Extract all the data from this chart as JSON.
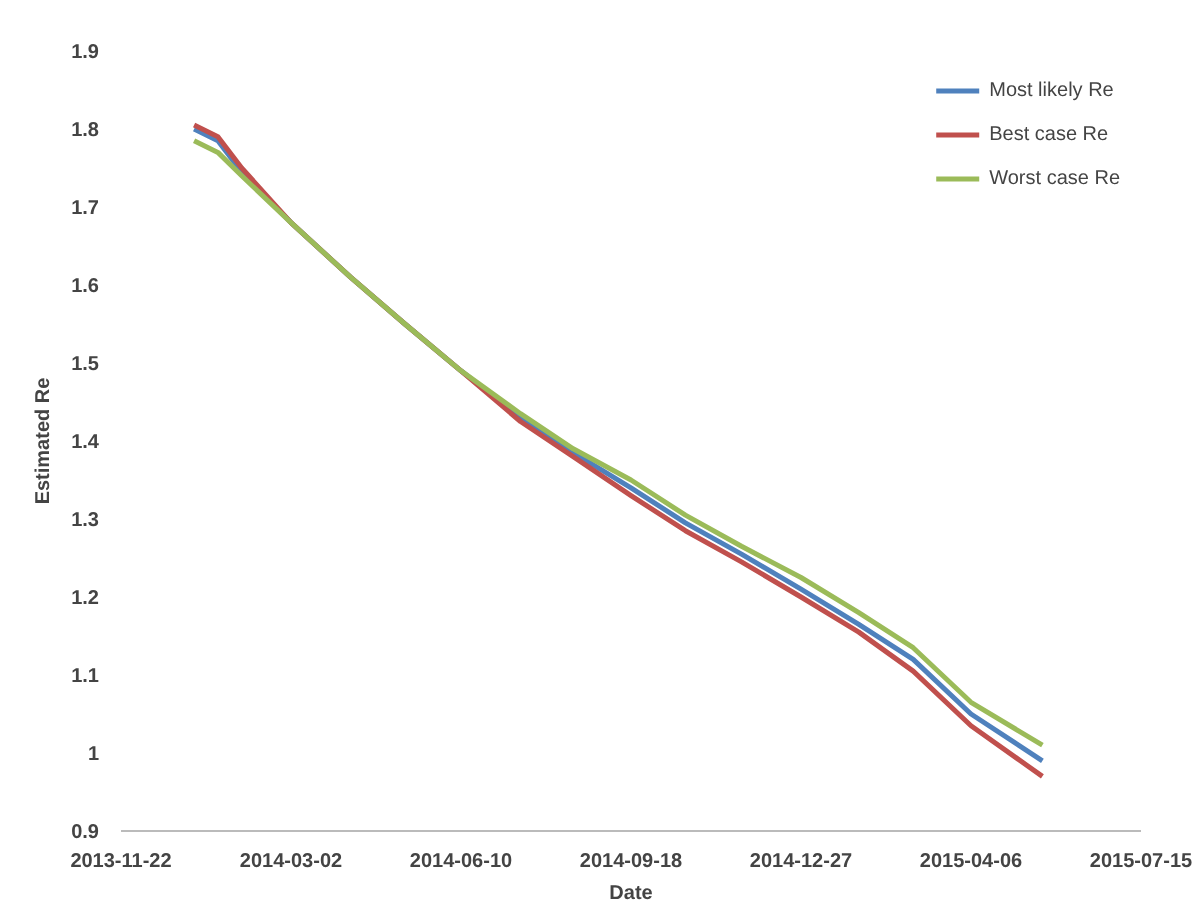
{
  "chart_data": {
    "type": "line",
    "xlabel": "Date",
    "ylabel": "Estimated Re",
    "xlim": [
      "2013-11-22",
      "2015-07-15"
    ],
    "xticks": [
      {
        "value": "2013-11-22",
        "label": "2013-11-22"
      },
      {
        "value": "2014-03-02",
        "label": "2014-03-02"
      },
      {
        "value": "2014-06-10",
        "label": "2014-06-10"
      },
      {
        "value": "2014-09-18",
        "label": "2014-09-18"
      },
      {
        "value": "2014-12-27",
        "label": "2014-12-27"
      },
      {
        "value": "2015-04-06",
        "label": "2015-04-06"
      },
      {
        "value": "2015-07-15",
        "label": "2015-07-15"
      }
    ],
    "ylim": [
      0.9,
      1.9
    ],
    "yticks": [
      0.9,
      {
        "value": 1.0,
        "label": "1"
      },
      1.1,
      1.2,
      1.3,
      1.4,
      1.5,
      1.6,
      1.7,
      1.8,
      1.9
    ],
    "x": [
      "2014-01-04",
      "2014-01-18",
      "2014-02-01",
      "2014-03-02",
      "2014-04-06",
      "2014-05-08",
      "2014-06-10",
      "2014-07-15",
      "2014-08-15",
      "2014-09-18",
      "2014-10-20",
      "2014-11-22",
      "2014-12-27",
      "2015-01-30",
      "2015-03-03",
      "2015-04-06",
      "2015-05-18"
    ],
    "series": [
      {
        "name": "Most likely Re",
        "color": "#4f81bd",
        "values": [
          1.8,
          1.785,
          1.745,
          1.68,
          1.61,
          1.55,
          1.49,
          1.43,
          1.385,
          1.34,
          1.295,
          1.255,
          1.21,
          1.165,
          1.12,
          1.05,
          0.99
        ]
      },
      {
        "name": "Best case Re",
        "color": "#c0504d",
        "values": [
          1.805,
          1.79,
          1.75,
          1.68,
          1.61,
          1.55,
          1.49,
          1.425,
          1.38,
          1.33,
          1.285,
          1.245,
          1.2,
          1.155,
          1.105,
          1.035,
          0.97
        ]
      },
      {
        "name": "Worst case Re",
        "color": "#9bbb59",
        "values": [
          1.785,
          1.77,
          1.74,
          1.68,
          1.61,
          1.55,
          1.49,
          1.435,
          1.39,
          1.35,
          1.305,
          1.265,
          1.225,
          1.18,
          1.135,
          1.065,
          1.01
        ]
      }
    ],
    "grid": false,
    "legend": "top right",
    "marker": "none",
    "line_style": "solid"
  }
}
